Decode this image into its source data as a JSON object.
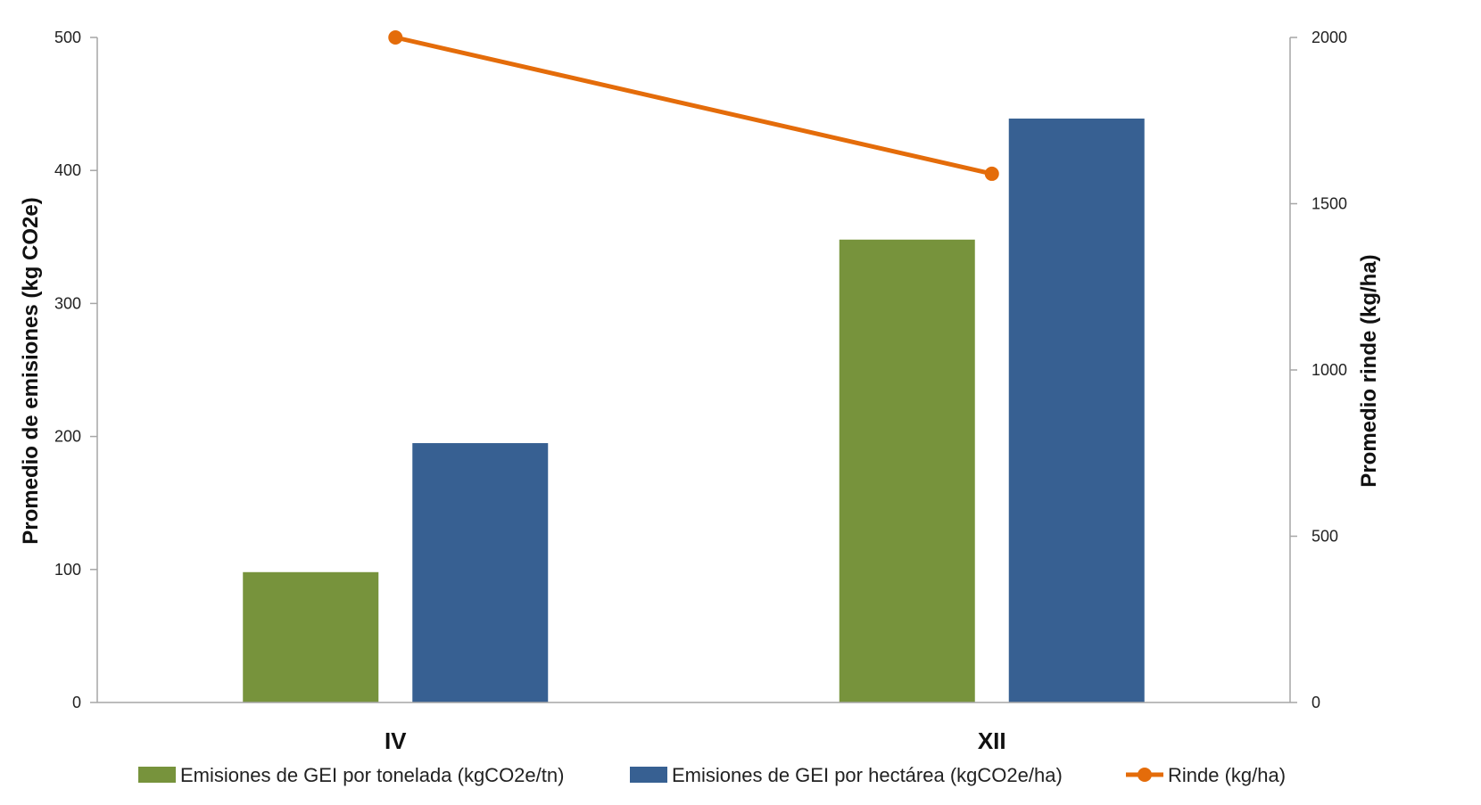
{
  "chart_data": {
    "type": "bar",
    "categories": [
      "IV",
      "XII"
    ],
    "series": [
      {
        "name": "Emisiones de GEI por tonelada (kgCO2e/tn)",
        "kind": "bar",
        "axis": "left",
        "color": "#77933C",
        "values": [
          98,
          348
        ]
      },
      {
        "name": "Emisiones de GEI por hectárea (kgCO2e/ha)",
        "kind": "bar",
        "axis": "left",
        "color": "#376092",
        "values": [
          195,
          439
        ]
      },
      {
        "name": "Rinde (kg/ha)",
        "kind": "line",
        "axis": "right",
        "color": "#E46C0A",
        "values": [
          2000,
          1590
        ]
      }
    ],
    "ylabel": "Promedio de emisiones (kg CO2e)",
    "ylabel_right": "Promedio rinde (kg/ha)",
    "ylim": [
      0,
      500
    ],
    "ylim_right": [
      0,
      2000
    ],
    "yticks": [
      "0",
      "100",
      "200",
      "300",
      "400",
      "500"
    ],
    "yticks_right": [
      "0",
      "500",
      "1000",
      "1500",
      "2000"
    ],
    "grid": false,
    "legend_position": "bottom"
  }
}
